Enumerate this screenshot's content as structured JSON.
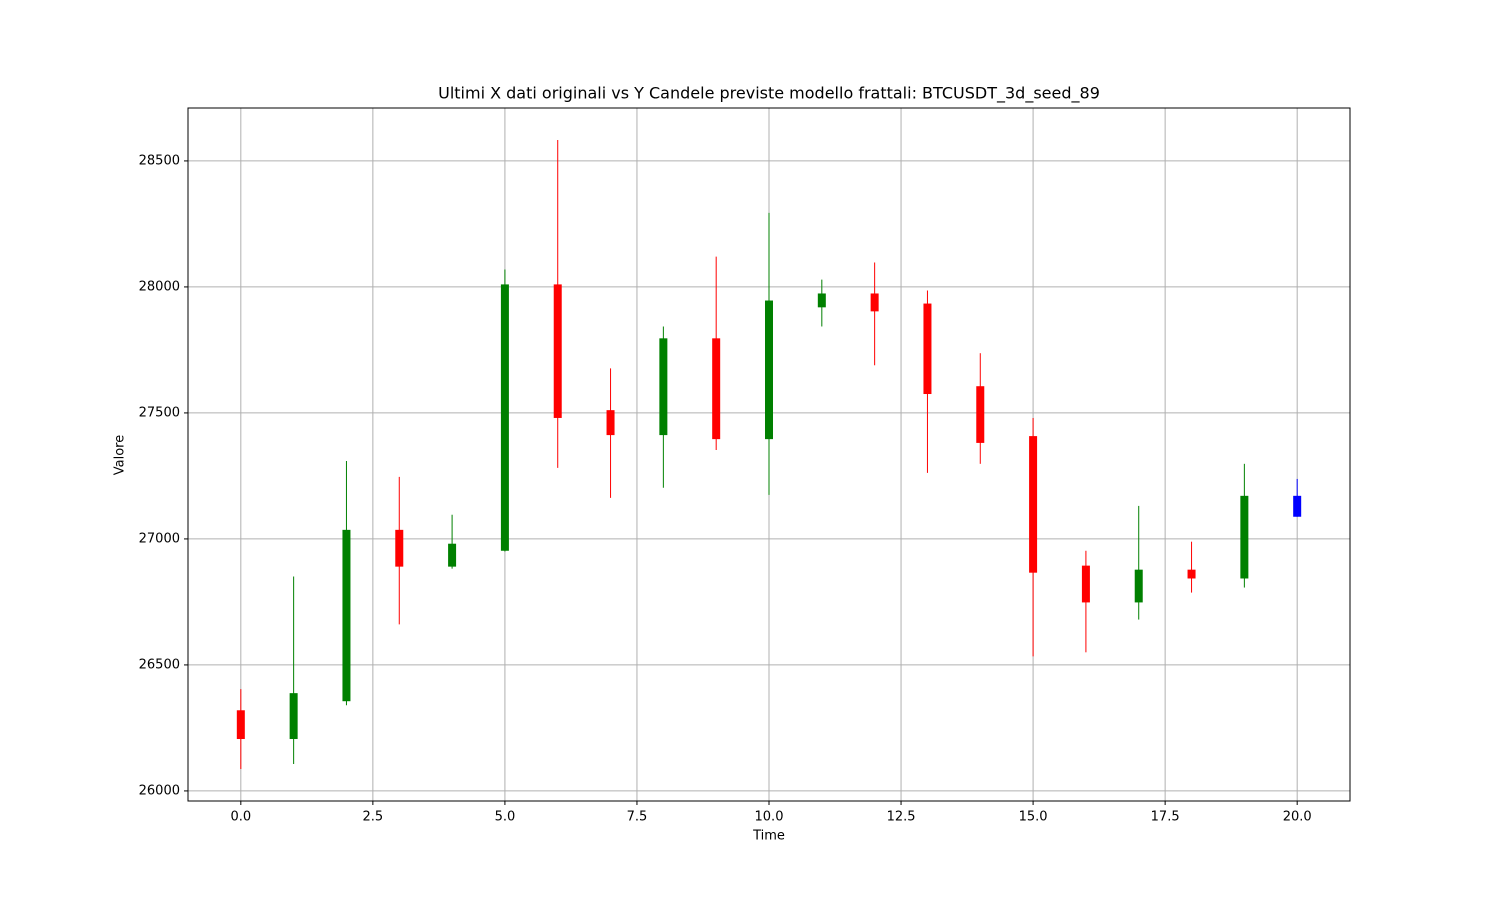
{
  "chart_data": {
    "type": "candlestick",
    "title": "Ultimi X dati originali vs Y Candele previste modello frattali: BTCUSDT_3d_seed_89",
    "xlabel": "Time",
    "ylabel": "Valore",
    "x": [
      0,
      1,
      2,
      3,
      4,
      5,
      6,
      7,
      8,
      9,
      10,
      11,
      12,
      13,
      14,
      15,
      16,
      17,
      18,
      19,
      20
    ],
    "open": [
      26320,
      26206,
      26356,
      27036,
      26890,
      26953,
      28010,
      27511,
      27412,
      27796,
      27396,
      27919,
      27974,
      27934,
      27606,
      27408,
      26894,
      26748,
      26878,
      26843,
      27088
    ],
    "high": [
      26404,
      26851,
      27309,
      27246,
      27096,
      28069,
      28583,
      27677,
      27843,
      28120,
      28294,
      28029,
      28097,
      27986,
      27737,
      27480,
      26953,
      27131,
      26989,
      27298,
      27238
    ],
    "low": [
      26087,
      26107,
      26340,
      26661,
      26882,
      26950,
      27282,
      27163,
      27203,
      27353,
      27175,
      27843,
      27689,
      27262,
      27298,
      26534,
      26550,
      26680,
      26787,
      26807,
      27088
    ],
    "close": [
      26206,
      26388,
      27036,
      26890,
      26981,
      28010,
      27480,
      27412,
      27796,
      27396,
      27946,
      27974,
      27903,
      27575,
      27381,
      26866,
      26748,
      26878,
      26843,
      27171,
      27171
    ],
    "colors": [
      "red",
      "green",
      "green",
      "red",
      "green",
      "green",
      "red",
      "red",
      "green",
      "red",
      "green",
      "green",
      "red",
      "red",
      "red",
      "red",
      "red",
      "green",
      "red",
      "green",
      "blue"
    ],
    "xlim": [
      -1,
      21
    ],
    "xticks": [
      {
        "value": 0,
        "label": "0.0"
      },
      {
        "value": 2.5,
        "label": "2.5"
      },
      {
        "value": 5,
        "label": "5.0"
      },
      {
        "value": 7.5,
        "label": "7.5"
      },
      {
        "value": 10,
        "label": "10.0"
      },
      {
        "value": 12.5,
        "label": "12.5"
      },
      {
        "value": 15,
        "label": "15.0"
      },
      {
        "value": 17.5,
        "label": "17.5"
      },
      {
        "value": 20,
        "label": "20.0"
      }
    ],
    "ylim": [
      25960,
      28710
    ],
    "yticks": [
      26000,
      26500,
      27000,
      27500,
      28000,
      28500
    ],
    "grid": true
  }
}
